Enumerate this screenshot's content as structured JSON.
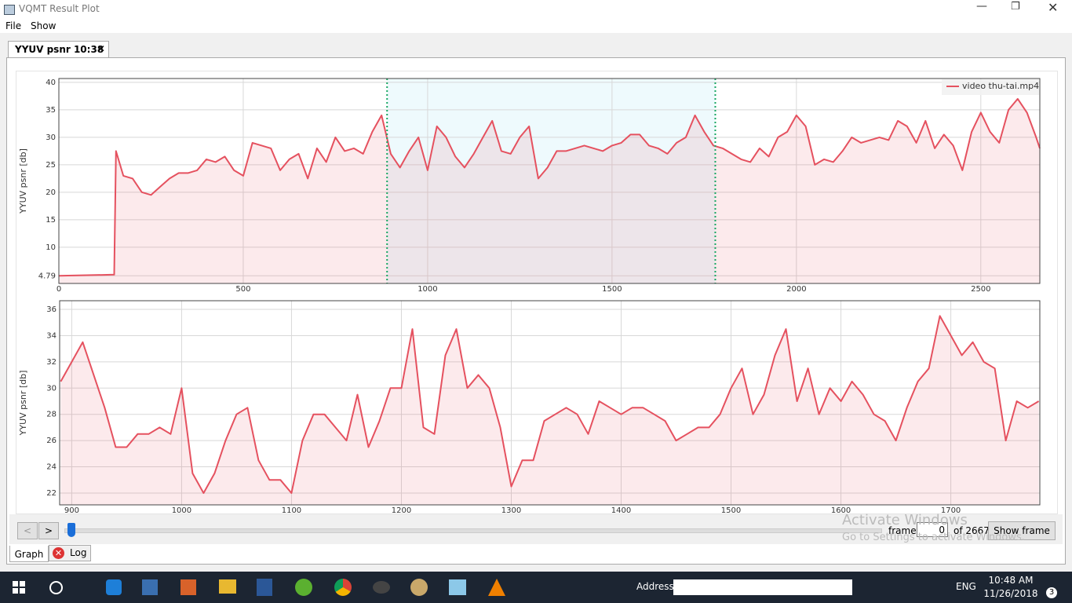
{
  "window": {
    "title": "VQMT Result Plot"
  },
  "menu": [
    "File",
    "Show"
  ],
  "tab": "YYUV psnr 10:38",
  "chart_data": [
    {
      "type": "line",
      "y_label": "YYUV psnr [db]",
      "x": [
        0,
        150,
        155,
        175,
        200,
        225,
        250,
        275,
        300,
        325,
        350,
        375,
        400,
        425,
        450,
        475,
        500,
        525,
        550,
        575,
        600,
        625,
        650,
        675,
        700,
        725,
        750,
        775,
        800,
        825,
        850,
        875,
        900,
        925,
        950,
        975,
        1000,
        1025,
        1050,
        1075,
        1100,
        1125,
        1150,
        1175,
        1200,
        1225,
        1250,
        1275,
        1300,
        1325,
        1350,
        1375,
        1400,
        1425,
        1450,
        1475,
        1500,
        1525,
        1550,
        1575,
        1600,
        1625,
        1650,
        1675,
        1700,
        1725,
        1750,
        1775,
        1800,
        1825,
        1850,
        1875,
        1900,
        1925,
        1950,
        1975,
        2000,
        2025,
        2050,
        2075,
        2100,
        2125,
        2150,
        2175,
        2200,
        2225,
        2250,
        2275,
        2300,
        2325,
        2350,
        2375,
        2400,
        2425,
        2450,
        2475,
        2500,
        2525,
        2550,
        2575,
        2600,
        2625,
        2650,
        2660
      ],
      "series": [
        {
          "name": "video thu-tai.mp4",
          "color": "#e5515f",
          "values": [
            4.79,
            5.0,
            27.5,
            23,
            22.5,
            20,
            19.5,
            21,
            22.5,
            23.5,
            23.5,
            24,
            26,
            25.5,
            26.5,
            24,
            23,
            29,
            28.5,
            28,
            24,
            26,
            27,
            22.5,
            28,
            25.5,
            30,
            27.5,
            28,
            27,
            31,
            34,
            27,
            24.5,
            27.5,
            30,
            24,
            32,
            30,
            26.5,
            24.5,
            27,
            30,
            33,
            27.5,
            27,
            30,
            32,
            22.5,
            24.5,
            27.5,
            27.5,
            28,
            28.5,
            28,
            27.5,
            28.5,
            29,
            30.5,
            30.5,
            28.5,
            28,
            27,
            29,
            30,
            34,
            31,
            28.5,
            28,
            27,
            26,
            25.5,
            28,
            26.5,
            30,
            31,
            34,
            32,
            25,
            26,
            25.5,
            27.5,
            30,
            29,
            29.5,
            30,
            29.5,
            33,
            32,
            29,
            33,
            28,
            30.5,
            28.5,
            24,
            31,
            34.5,
            31,
            29,
            35,
            37,
            34.5,
            30,
            28
          ]
        }
      ],
      "xlim": [
        0,
        2660
      ],
      "xticks": [
        0,
        500,
        1000,
        1500,
        2000,
        2500
      ],
      "ylim": [
        3.4,
        40.7
      ],
      "yticks": [
        4.79,
        10,
        15,
        20,
        25,
        30,
        35,
        40
      ],
      "selection": [
        890,
        1780
      ],
      "legend": "top-right",
      "grid": true
    },
    {
      "type": "line",
      "y_label": "YYUV psnr [db]",
      "x": [
        890,
        900,
        910,
        920,
        930,
        940,
        950,
        960,
        970,
        980,
        990,
        1000,
        1010,
        1020,
        1030,
        1040,
        1050,
        1060,
        1070,
        1080,
        1090,
        1100,
        1110,
        1120,
        1130,
        1140,
        1150,
        1160,
        1170,
        1180,
        1190,
        1200,
        1210,
        1220,
        1230,
        1240,
        1250,
        1260,
        1270,
        1280,
        1290,
        1300,
        1310,
        1320,
        1330,
        1340,
        1350,
        1360,
        1370,
        1380,
        1390,
        1400,
        1410,
        1420,
        1430,
        1440,
        1450,
        1460,
        1470,
        1480,
        1490,
        1500,
        1510,
        1520,
        1530,
        1540,
        1550,
        1560,
        1570,
        1580,
        1590,
        1600,
        1610,
        1620,
        1630,
        1640,
        1650,
        1660,
        1670,
        1680,
        1690,
        1700,
        1710,
        1720,
        1730,
        1740,
        1750,
        1760,
        1770,
        1780
      ],
      "series": [
        {
          "name": "video thu-tai.mp4",
          "color": "#e5515f",
          "values": [
            30.5,
            32,
            33.5,
            31,
            28.5,
            25.5,
            25.5,
            26.5,
            26.5,
            27,
            26.5,
            30,
            23.5,
            22,
            23.5,
            26,
            28,
            28.5,
            24.5,
            23,
            23,
            22,
            26,
            28,
            28,
            27,
            26,
            29.5,
            25.5,
            27.5,
            30,
            30,
            34.5,
            27,
            26.5,
            32.5,
            34.5,
            30,
            31,
            30,
            27,
            22.5,
            24.5,
            24.5,
            27.5,
            28,
            28.5,
            28,
            26.5,
            29,
            28.5,
            28,
            28.5,
            28.5,
            28,
            27.5,
            26,
            26.5,
            27,
            27,
            28,
            30,
            31.5,
            28,
            29.5,
            32.5,
            34.5,
            29,
            31.5,
            28,
            30,
            29,
            30.5,
            29.5,
            28,
            27.5,
            26,
            28.5,
            30.5,
            31.5,
            35.5,
            34,
            32.5,
            33.5,
            32,
            31.5,
            26,
            29,
            28.5,
            29
          ]
        }
      ],
      "xlim": [
        889,
        1781
      ],
      "xticks": [
        900,
        1000,
        1100,
        1200,
        1300,
        1400,
        1500,
        1600,
        1700
      ],
      "ylim": [
        21.1,
        36.66
      ],
      "yticks": [
        22,
        24,
        26,
        28,
        30,
        32,
        34,
        36
      ],
      "grid": true
    }
  ],
  "controls": {
    "prev": "<",
    "next": ">",
    "frame_label": "frame",
    "frame_value": "0",
    "frame_total": "of 2667",
    "show_frame": "Show frame"
  },
  "bottom_tabs": [
    "Graph",
    "Log"
  ],
  "watermark": {
    "title": "Activate Windows",
    "text": "Go to Settings to activate Windows."
  },
  "taskbar": {
    "address": "Address",
    "language": "ENG",
    "time": "10:48 AM",
    "date": "11/26/2018",
    "notifications": "3"
  }
}
